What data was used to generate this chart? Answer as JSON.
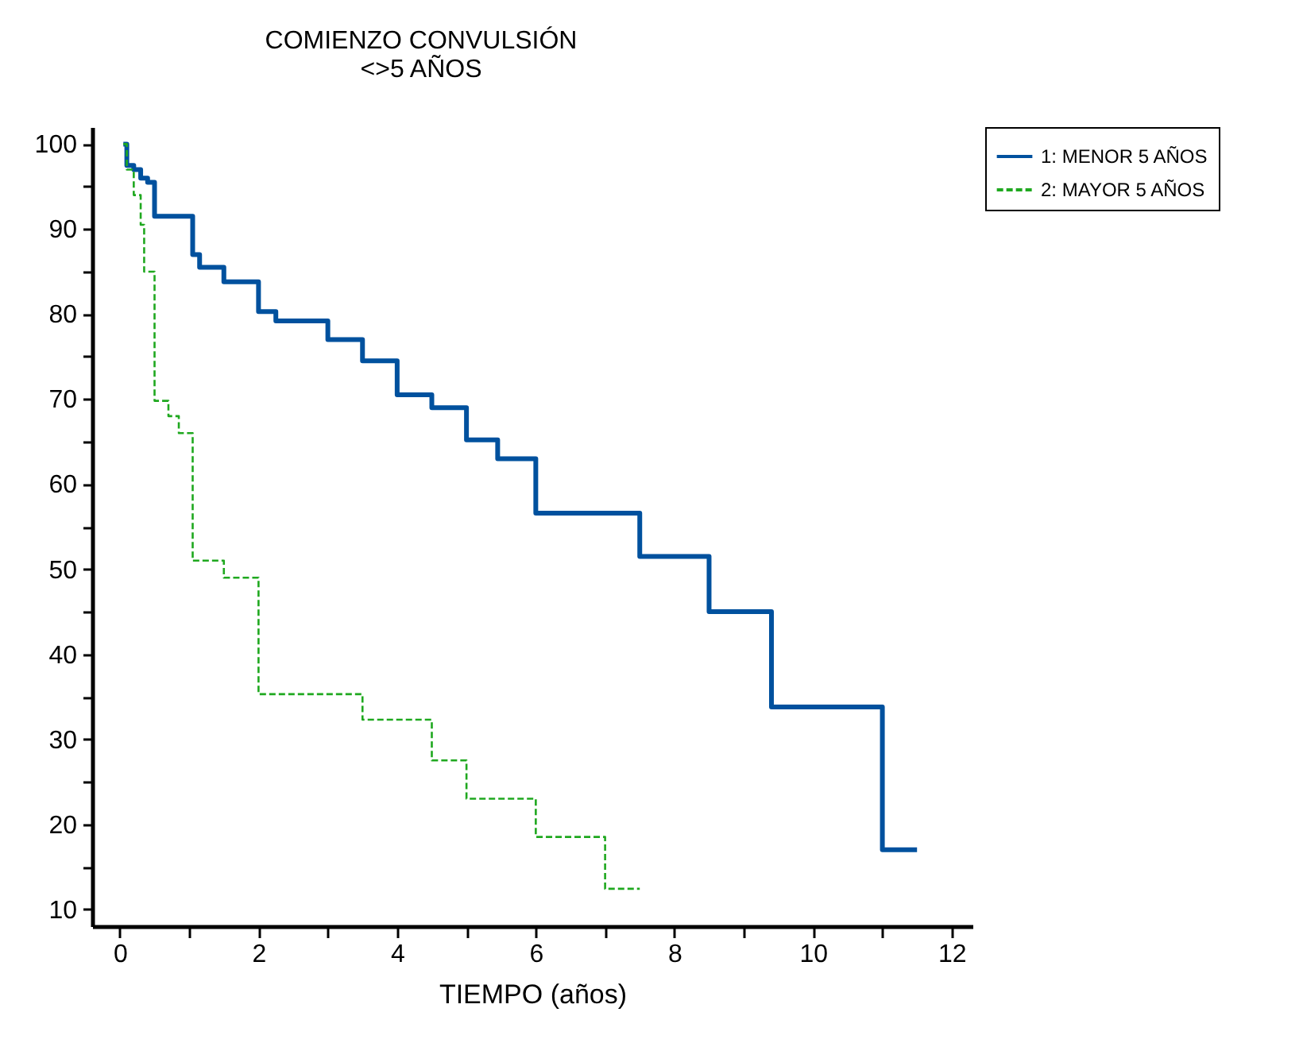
{
  "chart_data": {
    "type": "step",
    "title": "COMIENZO CONVULSIÓN",
    "subtitle": "<>5 AÑOS",
    "xlabel": "TIEMPO (años)",
    "xlim": [
      -0.4,
      12.3
    ],
    "xticks": [
      0,
      {
        "value": 1,
        "label": null
      },
      2,
      {
        "value": 3,
        "label": null
      },
      4,
      {
        "value": 5,
        "label": null
      },
      6,
      {
        "value": 7,
        "label": null
      },
      8,
      {
        "value": 9,
        "label": null
      },
      10,
      {
        "value": 11,
        "label": null
      },
      12
    ],
    "ylim": [
      8,
      102
    ],
    "yticks": [
      10,
      {
        "value": 15,
        "label": null
      },
      20,
      {
        "value": 25,
        "label": null
      },
      30,
      {
        "value": 35,
        "label": null
      },
      40,
      {
        "value": 45,
        "label": null
      },
      50,
      {
        "value": 55,
        "label": null
      },
      60,
      {
        "value": 65,
        "label": null
      },
      70,
      {
        "value": 75,
        "label": null
      },
      80,
      {
        "value": 85,
        "label": null
      },
      90,
      {
        "value": 95,
        "label": null
      },
      100
    ],
    "grid": false,
    "legend": "right",
    "marker": "none",
    "series": [
      {
        "name": "1: MENOR 5 AÑOS",
        "color": "#00519e",
        "line_style": "solid",
        "x": [
          0.05,
          0.1,
          0.2,
          0.3,
          0.4,
          0.5,
          1.05,
          1.15,
          1.5,
          2.0,
          2.25,
          3.0,
          3.5,
          4.0,
          4.5,
          5.0,
          5.45,
          6.0,
          7.5,
          8.5,
          9.4,
          11.0,
          11.5
        ],
        "values": [
          100,
          97.5,
          97,
          96,
          95.5,
          91.5,
          87,
          85.5,
          83.8,
          80.3,
          79.2,
          77,
          74.5,
          70.5,
          69,
          65.2,
          63,
          56.6,
          51.5,
          45,
          33.8,
          17,
          17
        ]
      },
      {
        "name": "2: MAYOR 5 AÑOS",
        "color": "#1fa81f",
        "line_style": "dashed",
        "x": [
          0.05,
          0.1,
          0.2,
          0.3,
          0.35,
          0.5,
          0.7,
          0.85,
          1.05,
          1.5,
          2.0,
          3.5,
          4.5,
          5.0,
          6.0,
          7.0,
          7.5
        ],
        "values": [
          100,
          97,
          94,
          90.5,
          85,
          69.8,
          68,
          66,
          51,
          49,
          35.3,
          32.3,
          27.5,
          23,
          18.5,
          12.4,
          12.4
        ]
      }
    ]
  }
}
